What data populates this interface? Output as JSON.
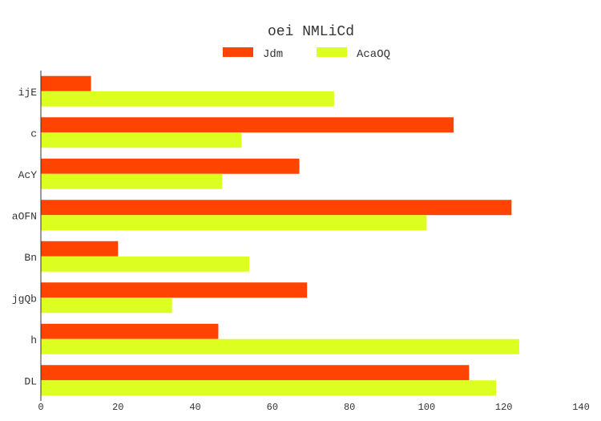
{
  "chart_data": {
    "type": "bar",
    "orientation": "horizontal",
    "title": "oei NMLiCd",
    "categories": [
      "ijE",
      "c",
      "AcY",
      "aOFN",
      "Bn",
      "jgQb",
      "h",
      "DL"
    ],
    "series": [
      {
        "name": "Jdm",
        "color": "#ff4300",
        "values": [
          13,
          107,
          67,
          122,
          20,
          69,
          46,
          111
        ]
      },
      {
        "name": "AcaOQ",
        "color": "#dcff21",
        "values": [
          76,
          52,
          47,
          100,
          54,
          34,
          124,
          118
        ]
      }
    ],
    "xlim": [
      0,
      140
    ],
    "xticks": [
      0,
      20,
      40,
      60,
      80,
      100,
      120,
      140
    ],
    "grid": false,
    "legend_position": "top-center"
  }
}
